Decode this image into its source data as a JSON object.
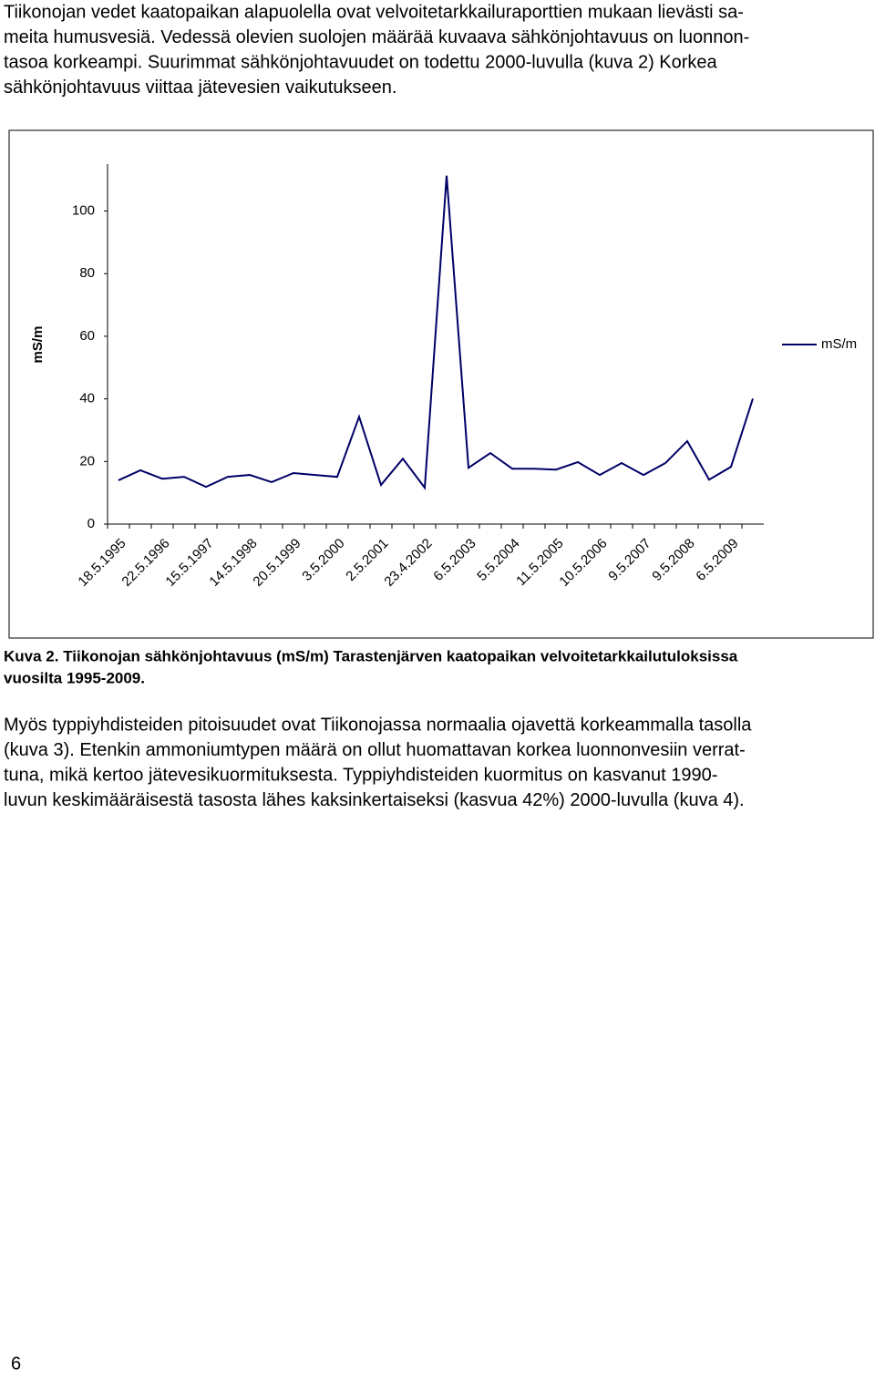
{
  "paragraphs": [
    {
      "lines": [
        "Tiikonojan vedet kaatopaikan alapuolella ovat velvoitetarkkailuraporttien mukaan lievästi sa-",
        "meita humusvesiä. Vedessä olevien suolojen määrää kuvaava sähkönjohtavuus on luonnon-",
        "tasoa korkeampi. Suurimmat sähkönjohtavuudet on todettu 2000-luvulla (kuva 2) Korkea",
        "sähkönjohtavuus viittaa jätevesien vaikutukseen."
      ]
    },
    {
      "lines": [
        "Myös typpiyhdisteiden pitoisuudet ovat Tiikonojassa normaalia ojavettä korkeammalla tasolla",
        "(kuva 3). Etenkin ammoniumtypen määrä on ollut huomattavan korkea luonnonvesiin verrat-",
        "tuna, mikä kertoo jätevesikuormituksesta. Typpiyhdisteiden kuormitus on kasvanut 1990-",
        "luvun keskimääräisestä tasosta lähes kaksinkertaiseksi (kasvua 42%) 2000-luvulla (kuva 4)."
      ]
    }
  ],
  "caption": {
    "lines": [
      "Kuva 2. Tiikonojan sähkönjohtavuus (mS/m) Tarastenjärven kaatopaikan velvoitetarkkailutuloksissa",
      "vuosilta 1995-2009."
    ]
  },
  "page_number": "6",
  "chart_data": {
    "type": "line",
    "y_label": "mS/m",
    "categories": [
      "18.5.1995",
      null,
      "22.5.1996",
      null,
      "15.5.1997",
      null,
      "14.5.1998",
      null,
      "20.5.1999",
      null,
      "3.5.2000",
      null,
      "2.5.2001",
      null,
      "23.4.2002",
      null,
      "6.5.2003",
      null,
      "5.5.2004",
      null,
      "11.5.2005",
      null,
      "10.5.2006",
      null,
      "9.5.2007",
      null,
      "9.5.2008",
      null,
      "6.5.2009",
      null
    ],
    "series": [
      {
        "name": "mS/m",
        "color": "#000066",
        "values": [
          14,
          17.2,
          14.5,
          15.1,
          11.9,
          15.1,
          15.7,
          13.4,
          16.3,
          15.7,
          15.1,
          34.3,
          12.5,
          20.9,
          11.6,
          111.3,
          18,
          22.7,
          17.7,
          17.7,
          17.4,
          19.8,
          15.7,
          19.5,
          15.7,
          19.5,
          26.5,
          14.2,
          18.3,
          40.1
        ]
      }
    ],
    "ylim": [
      0,
      115
    ],
    "yticks": [
      0,
      20,
      40,
      60,
      80,
      100
    ],
    "legend": "right"
  }
}
